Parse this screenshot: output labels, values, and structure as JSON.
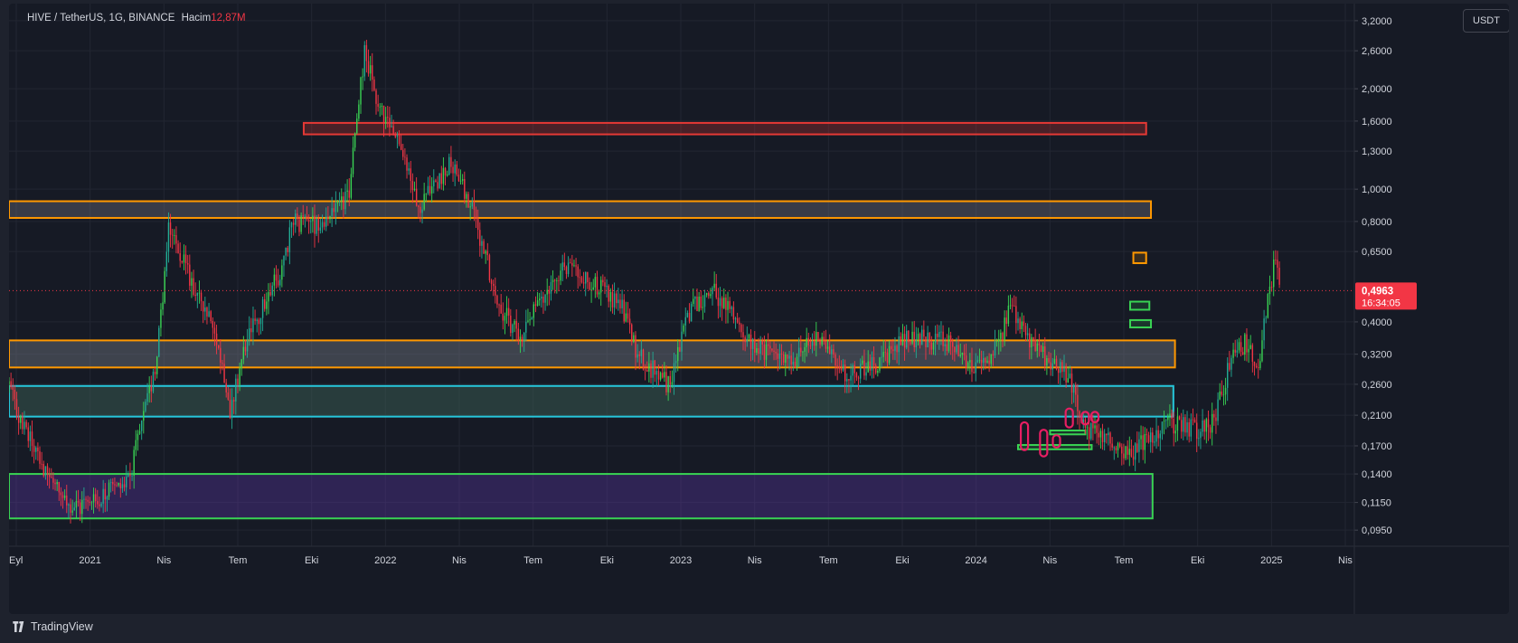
{
  "header": {
    "symbol": "HIVE / TetherUS, 1G, BINANCE",
    "volume_label": "Hacim",
    "volume_value": "12,87",
    "volume_unit": "M"
  },
  "price_scale_unit": "USDT",
  "current_price": {
    "value": "0,4963",
    "countdown": "16:34:05",
    "price": 0.4963
  },
  "footer": {
    "brand": "TradingView"
  },
  "colors": {
    "background": "#161a25",
    "up": "#22ab94",
    "up_bright": "#39d353",
    "down": "#f23645",
    "axis_text": "#d1d4dc",
    "grid": "#222632"
  },
  "chart_data": {
    "type": "candlestick",
    "scale": "log",
    "ylim": [
      0.085,
      3.6
    ],
    "y_ticks": [
      {
        "label": "3,2000",
        "value": 3.2
      },
      {
        "label": "2,6000",
        "value": 2.6
      },
      {
        "label": "2,0000",
        "value": 2.0
      },
      {
        "label": "1,6000",
        "value": 1.6
      },
      {
        "label": "1,3000",
        "value": 1.3
      },
      {
        "label": "1,0000",
        "value": 1.0
      },
      {
        "label": "0,8000",
        "value": 0.8
      },
      {
        "label": "0,6500",
        "value": 0.65
      },
      {
        "label": "0,4000",
        "value": 0.4
      },
      {
        "label": "0,3200",
        "value": 0.32
      },
      {
        "label": "0,2600",
        "value": 0.26
      },
      {
        "label": "0,2100",
        "value": 0.21
      },
      {
        "label": "0,1700",
        "value": 0.17
      },
      {
        "label": "0,1400",
        "value": 0.14
      },
      {
        "label": "0,1150",
        "value": 0.115
      },
      {
        "label": "0,0950",
        "value": 0.095
      }
    ],
    "x_ticks": [
      "Eyl",
      "2021",
      "Nis",
      "Tem",
      "Eki",
      "2022",
      "Nis",
      "Tem",
      "Eki",
      "2023",
      "Nis",
      "Tem",
      "Eki",
      "2024",
      "Nis",
      "Tem",
      "Eki",
      "2025",
      "Nis"
    ],
    "x_start": "2020-09",
    "x_end": "2025-05",
    "price_path": [
      {
        "t": 0.0,
        "p": 0.26
      },
      {
        "t": 0.35,
        "p": 0.2
      },
      {
        "t": 1.8,
        "p": 0.11
      },
      {
        "t": 3.7,
        "p": 0.13
      },
      {
        "t": 4.6,
        "p": 0.3
      },
      {
        "t": 5.0,
        "p": 0.78
      },
      {
        "t": 5.6,
        "p": 0.55
      },
      {
        "t": 6.4,
        "p": 0.4
      },
      {
        "t": 6.9,
        "p": 0.22
      },
      {
        "t": 7.4,
        "p": 0.35
      },
      {
        "t": 8.4,
        "p": 0.55
      },
      {
        "t": 8.9,
        "p": 0.8
      },
      {
        "t": 9.9,
        "p": 0.78
      },
      {
        "t": 10.6,
        "p": 0.95
      },
      {
        "t": 11.1,
        "p": 2.6
      },
      {
        "t": 11.6,
        "p": 1.7
      },
      {
        "t": 12.3,
        "p": 1.3
      },
      {
        "t": 12.8,
        "p": 0.9
      },
      {
        "t": 13.8,
        "p": 1.2
      },
      {
        "t": 14.5,
        "p": 0.85
      },
      {
        "t": 15.3,
        "p": 0.45
      },
      {
        "t": 16.0,
        "p": 0.35
      },
      {
        "t": 16.5,
        "p": 0.45
      },
      {
        "t": 17.3,
        "p": 0.58
      },
      {
        "t": 18.3,
        "p": 0.52
      },
      {
        "t": 19.1,
        "p": 0.45
      },
      {
        "t": 19.6,
        "p": 0.32
      },
      {
        "t": 20.6,
        "p": 0.26
      },
      {
        "t": 21.3,
        "p": 0.45
      },
      {
        "t": 22.0,
        "p": 0.5
      },
      {
        "t": 23.1,
        "p": 0.35
      },
      {
        "t": 24.3,
        "p": 0.3
      },
      {
        "t": 25.3,
        "p": 0.36
      },
      {
        "t": 26.1,
        "p": 0.28
      },
      {
        "t": 27.1,
        "p": 0.3
      },
      {
        "t": 28.1,
        "p": 0.36
      },
      {
        "t": 29.2,
        "p": 0.35
      },
      {
        "t": 30.1,
        "p": 0.3
      },
      {
        "t": 30.8,
        "p": 0.33
      },
      {
        "t": 31.3,
        "p": 0.45
      },
      {
        "t": 31.8,
        "p": 0.35
      },
      {
        "t": 32.3,
        "p": 0.32
      },
      {
        "t": 33.2,
        "p": 0.26
      },
      {
        "t": 33.6,
        "p": 0.19
      },
      {
        "t": 34.3,
        "p": 0.18
      },
      {
        "t": 35.0,
        "p": 0.16
      },
      {
        "t": 36.1,
        "p": 0.2
      },
      {
        "t": 37.1,
        "p": 0.19
      },
      {
        "t": 37.6,
        "p": 0.2
      },
      {
        "t": 38.1,
        "p": 0.3
      },
      {
        "t": 38.6,
        "p": 0.35
      },
      {
        "t": 39.0,
        "p": 0.3
      },
      {
        "t": 39.5,
        "p": 0.6
      },
      {
        "t": 39.7,
        "p": 0.4963
      }
    ],
    "zones": [
      {
        "name": "red-resistance-zone",
        "x0": 9.2,
        "x1": 35.5,
        "ylow": 1.46,
        "yhigh": 1.58,
        "stroke": "#e53935",
        "fill": "rgba(229,57,53,0.25)"
      },
      {
        "name": "orange-upper-zone",
        "x0": 0.0,
        "x1": 35.65,
        "ylow": 0.82,
        "yhigh": 0.92,
        "stroke": "#ff9800",
        "fill": "rgba(120,123,134,0.35)"
      },
      {
        "name": "orange-support-zone",
        "x0": 0.0,
        "x1": 36.4,
        "ylow": 0.292,
        "yhigh": 0.352,
        "stroke": "#ff9800",
        "fill": "rgba(120,123,134,0.42)"
      },
      {
        "name": "cyan-zone",
        "x0": 0.0,
        "x1": 36.35,
        "ylow": 0.208,
        "yhigh": 0.257,
        "stroke": "#26c6da",
        "fill": "rgba(56,90,80,0.55)"
      },
      {
        "name": "purple-green-zone",
        "x0": 0.0,
        "x1": 35.7,
        "ylow": 0.103,
        "yhigh": 0.14,
        "stroke": "#39d353",
        "fill": "rgba(103,58,183,0.32)"
      },
      {
        "name": "green-box-1",
        "x0": 31.5,
        "x1": 33.8,
        "ylow": 0.166,
        "yhigh": 0.171,
        "stroke": "#39d353",
        "fill": "rgba(57,211,83,0.15)"
      },
      {
        "name": "green-box-2",
        "x0": 32.5,
        "x1": 33.6,
        "ylow": 0.184,
        "yhigh": 0.189,
        "stroke": "#39d353",
        "fill": "rgba(57,211,83,0.15)"
      },
      {
        "name": "green-box-3",
        "x0": 35.0,
        "x1": 35.65,
        "ylow": 0.385,
        "yhigh": 0.405,
        "stroke": "#39d353",
        "fill": "rgba(57,211,83,0.15)"
      },
      {
        "name": "green-box-4",
        "x0": 35.0,
        "x1": 35.6,
        "ylow": 0.435,
        "yhigh": 0.46,
        "stroke": "#39d353",
        "fill": "rgba(57,211,83,0.15)"
      },
      {
        "name": "orange-box-top",
        "x0": 35.1,
        "x1": 35.5,
        "ylow": 0.6,
        "yhigh": 0.645,
        "stroke": "#ff9800",
        "fill": "rgba(255,152,0,0.15)"
      }
    ],
    "pink_marks": [
      {
        "t": 31.7,
        "lo": 0.165,
        "hi": 0.2
      },
      {
        "t": 32.3,
        "lo": 0.158,
        "hi": 0.19
      },
      {
        "t": 32.7,
        "lo": 0.168,
        "hi": 0.183
      },
      {
        "t": 33.1,
        "lo": 0.193,
        "hi": 0.22
      },
      {
        "t": 33.6,
        "lo": 0.197,
        "hi": 0.215
      },
      {
        "t": 33.9,
        "lo": 0.2,
        "hi": 0.215
      }
    ]
  }
}
